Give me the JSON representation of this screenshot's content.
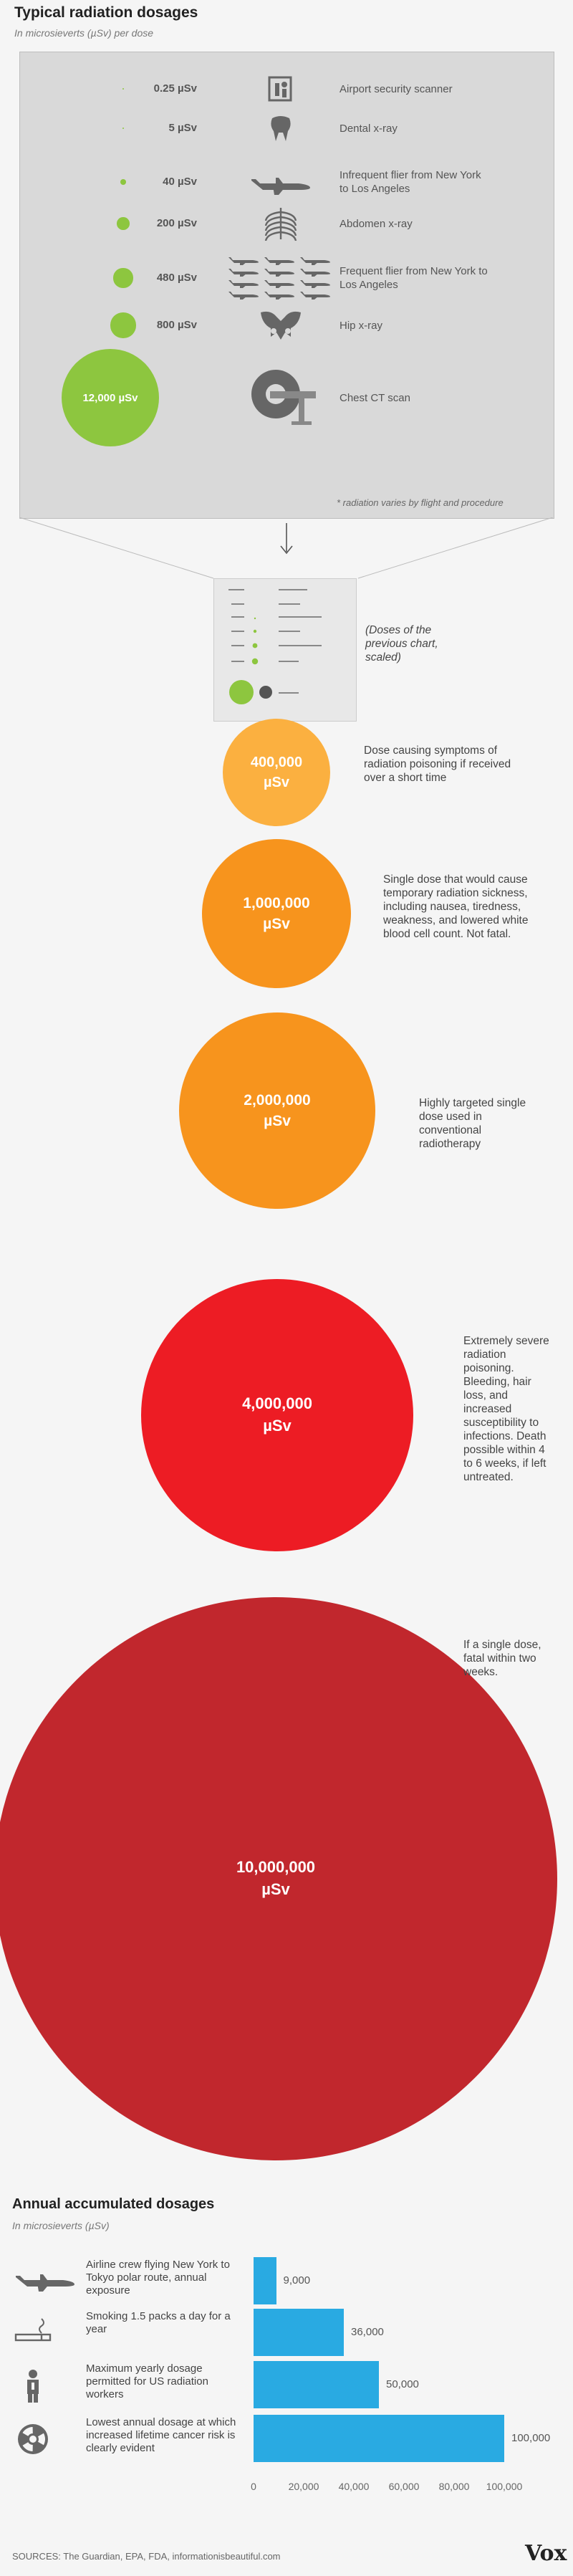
{
  "header": {
    "title": "Typical radiation dosages",
    "subtitle": "In microsieverts (µSv) per dose"
  },
  "doses": [
    {
      "value": "0.25 µSv",
      "label": "Airport security scanner",
      "icon": "scanner-icon",
      "dot": 0.25
    },
    {
      "value": "5 µSv",
      "label": "Dental x-ray",
      "icon": "tooth-icon",
      "dot": 5
    },
    {
      "value": "40 µSv",
      "label": "Infrequent flier from New York to Los Angeles",
      "icon": "airplane-icon",
      "dot": 40
    },
    {
      "value": "200 µSv",
      "label": "Abdomen x-ray",
      "icon": "ribcage-icon",
      "dot": 200
    },
    {
      "value": "480 µSv",
      "label": "Frequent flier from New York to Los Angeles",
      "icon": "airplanes-icon",
      "dot": 480
    },
    {
      "value": "800 µSv",
      "label": "Hip x-ray",
      "icon": "pelvis-icon",
      "dot": 800
    },
    {
      "value": "12,000 µSv",
      "label": "Chest CT scan",
      "icon": "ct-scanner-icon",
      "dot": 12000
    }
  ],
  "panel_note": "* radiation varies by flight and procedure",
  "scaled_note": "(Doses of the previous chart, scaled)",
  "big_doses": [
    {
      "value": "400,000 µSv",
      "desc": "Dose causing symptoms of radiation poisoning if received over a short time",
      "color": "#fbb040"
    },
    {
      "value": "1,000,000 µSv",
      "desc": "Single dose that would cause temporary radiation sickness, including nausea, tiredness, weakness, and lowered white blood cell count. Not fatal.",
      "color": "#f7941d"
    },
    {
      "value": "2,000,000 µSv",
      "desc": "Highly targeted single dose used in conventional radiotherapy",
      "color": "#f7941d"
    },
    {
      "value": "4,000,000 µSv",
      "desc": "Extremely severe radiation poisoning. Bleeding, hair loss, and increased susceptibility to infections. Death possible within 4 to 6 weeks, if left untreated.",
      "color": "#ed1c24"
    },
    {
      "value": "10,000,000 µSv",
      "desc": "If a single dose, fatal within two weeks.",
      "color": "#c1272d"
    }
  ],
  "annual": {
    "title": "Annual accumulated dosages",
    "subtitle": "In microsieverts (µSv)"
  },
  "chart_data": {
    "type": "bar",
    "orientation": "horizontal",
    "title": "Annual accumulated dosages",
    "subtitle": "In microsieverts (µSv)",
    "categories": [
      "Airline crew flying New York to Tokyo polar route, annual exposure",
      "Smoking 1.5 packs a day for a year",
      "Maximum yearly dosage permitted for US radiation workers",
      "Lowest annual dosage at which increased lifetime cancer risk is clearly evident"
    ],
    "values": [
      9000,
      36000,
      50000,
      100000
    ],
    "value_labels": [
      "9,000",
      "36,000",
      "50,000",
      "100,000"
    ],
    "icons": [
      "airplane-icon",
      "cigarette-icon",
      "worker-icon",
      "radiation-icon"
    ],
    "xlim": [
      0,
      100000
    ],
    "xticks": [
      "0",
      "20,000",
      "40,000",
      "60,000",
      "80,000",
      "100,000"
    ],
    "bar_color": "#29aae2",
    "grid": false
  },
  "footer": {
    "sources": "SOURCES: The Guardian, EPA, FDA, informationisbeautiful.com",
    "logo": "Vox"
  }
}
